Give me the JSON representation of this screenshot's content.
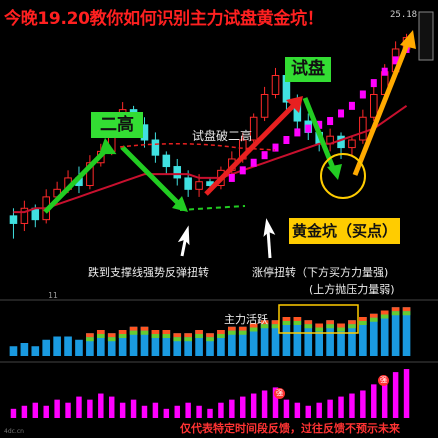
{
  "header": {
    "title": "今晚19.20教你如何识别主力试盘黄金坑！",
    "price_top": "25.18"
  },
  "annotations": {
    "two_highs": "二高",
    "test_break_second_high": "试盘破二高",
    "test_tag": "试盘",
    "golden_pit": "黄金坑（买点）",
    "pullback_text": "跌到支撑线强势反弹扭转",
    "limit_up_line1": "涨停扭转（下方买方力量强)",
    "limit_up_line2": "(上方抛压力量弱)",
    "active_label": "主力活跃",
    "lower_tick": "11",
    "corner_small": "4dc.cn",
    "badge_1": "强",
    "badge_2": "强"
  },
  "footer": {
    "disclaimer": "仅代表特定时间段反馈，过往反馈不预示未来"
  },
  "colors": {
    "title": "#ff2020",
    "price_up": "#ff2a2a",
    "price_down": "#40e0e0",
    "ma_red": "#c8102e",
    "ma_magenta": "#ff00ff",
    "arrow_green": "#22cc22",
    "arrow_red": "#e82020",
    "arrow_orange": "#ffaa00",
    "golden_box": "#ffcc00",
    "bar_blue": "#1a9ae0",
    "bar_pink": "#ff00ff"
  },
  "chart_data": [
    {
      "type": "candlestick",
      "title": "",
      "y_top_label": "25.18",
      "candles": [
        {
          "o": 20.4,
          "c": 20.2,
          "h": 20.6,
          "l": 19.8
        },
        {
          "o": 20.2,
          "c": 20.6,
          "h": 20.8,
          "l": 20.0
        },
        {
          "o": 20.6,
          "c": 20.3,
          "h": 20.7,
          "l": 20.1
        },
        {
          "o": 20.3,
          "c": 20.9,
          "h": 21.1,
          "l": 20.2
        },
        {
          "o": 20.9,
          "c": 21.1,
          "h": 21.3,
          "l": 20.7
        },
        {
          "o": 21.1,
          "c": 21.4,
          "h": 21.6,
          "l": 21.0
        },
        {
          "o": 21.4,
          "c": 21.2,
          "h": 21.7,
          "l": 21.0
        },
        {
          "o": 21.2,
          "c": 21.8,
          "h": 22.0,
          "l": 21.1
        },
        {
          "o": 21.8,
          "c": 22.1,
          "h": 22.3,
          "l": 21.7
        },
        {
          "o": 22.1,
          "c": 22.6,
          "h": 22.9,
          "l": 22.0
        },
        {
          "o": 22.6,
          "c": 23.2,
          "h": 23.4,
          "l": 22.5
        },
        {
          "o": 23.2,
          "c": 22.8,
          "h": 23.3,
          "l": 22.5
        },
        {
          "o": 22.8,
          "c": 22.4,
          "h": 23.0,
          "l": 22.2
        },
        {
          "o": 22.4,
          "c": 22.0,
          "h": 22.6,
          "l": 21.8
        },
        {
          "o": 22.0,
          "c": 21.7,
          "h": 22.1,
          "l": 21.5
        },
        {
          "o": 21.7,
          "c": 21.4,
          "h": 21.9,
          "l": 21.2
        },
        {
          "o": 21.4,
          "c": 21.1,
          "h": 21.6,
          "l": 20.9
        },
        {
          "o": 21.1,
          "c": 21.3,
          "h": 21.5,
          "l": 20.9
        },
        {
          "o": 21.3,
          "c": 21.2,
          "h": 21.4,
          "l": 21.0
        },
        {
          "o": 21.2,
          "c": 21.6,
          "h": 21.7,
          "l": 21.1
        },
        {
          "o": 21.6,
          "c": 21.9,
          "h": 22.1,
          "l": 21.5
        },
        {
          "o": 21.9,
          "c": 22.4,
          "h": 22.6,
          "l": 21.8
        },
        {
          "o": 22.4,
          "c": 23.0,
          "h": 23.1,
          "l": 22.3
        },
        {
          "o": 23.0,
          "c": 23.6,
          "h": 23.8,
          "l": 22.9
        },
        {
          "o": 23.6,
          "c": 24.1,
          "h": 24.3,
          "l": 23.5
        },
        {
          "o": 24.1,
          "c": 23.4,
          "h": 24.2,
          "l": 23.2
        },
        {
          "o": 23.4,
          "c": 22.9,
          "h": 23.6,
          "l": 22.7
        },
        {
          "o": 22.9,
          "c": 22.6,
          "h": 23.1,
          "l": 22.4
        },
        {
          "o": 22.6,
          "c": 22.3,
          "h": 22.8,
          "l": 22.1
        },
        {
          "o": 22.3,
          "c": 22.5,
          "h": 22.7,
          "l": 22.1
        },
        {
          "o": 22.5,
          "c": 22.2,
          "h": 22.6,
          "l": 21.9
        },
        {
          "o": 22.2,
          "c": 22.4,
          "h": 22.5,
          "l": 22.0
        },
        {
          "o": 22.4,
          "c": 23.0,
          "h": 23.2,
          "l": 22.3
        },
        {
          "o": 23.0,
          "c": 23.6,
          "h": 23.8,
          "l": 22.9
        },
        {
          "o": 23.6,
          "c": 24.2,
          "h": 24.4,
          "l": 23.5
        },
        {
          "o": 24.2,
          "c": 24.8,
          "h": 25.0,
          "l": 24.1
        },
        {
          "o": 24.8,
          "c": 25.1,
          "h": 25.2,
          "l": 24.7
        }
      ],
      "ma_red": [
        20.5,
        20.5,
        20.6,
        20.6,
        20.7,
        20.8,
        20.9,
        21.0,
        21.1,
        21.2,
        21.3,
        21.4,
        21.5,
        21.5,
        21.5,
        21.5,
        21.5,
        21.4,
        21.4,
        21.4,
        21.5,
        21.6,
        21.7,
        21.8,
        21.9,
        22.0,
        22.1,
        22.2,
        22.3,
        22.3,
        22.4,
        22.5,
        22.6,
        22.7,
        22.9,
        23.1,
        23.3
      ],
      "ma_magenta_dots": [
        null,
        null,
        null,
        null,
        null,
        null,
        null,
        null,
        null,
        null,
        null,
        null,
        null,
        null,
        null,
        null,
        null,
        null,
        null,
        null,
        21.4,
        21.6,
        21.8,
        22.0,
        22.2,
        22.4,
        22.6,
        22.7,
        22.8,
        22.9,
        23.1,
        23.3,
        23.6,
        23.9,
        24.2,
        24.5,
        24.8
      ],
      "ylim": [
        19.5,
        25.3
      ]
    },
    {
      "type": "bar",
      "title": "",
      "series": [
        {
          "values": [
            3,
            4,
            3,
            5,
            6,
            6,
            5,
            7,
            8,
            7,
            8,
            9,
            9,
            8,
            8,
            7,
            7,
            8,
            7,
            8,
            9,
            9,
            10,
            11,
            11,
            12,
            12,
            11,
            10,
            11,
            10,
            11,
            12,
            13,
            14,
            15,
            15
          ]
        }
      ],
      "ylim": [
        0,
        16
      ]
    },
    {
      "type": "bar",
      "title": "",
      "series": [
        {
          "values": [
            3,
            4,
            5,
            4,
            6,
            5,
            7,
            6,
            8,
            7,
            5,
            6,
            4,
            5,
            3,
            4,
            5,
            4,
            3,
            5,
            6,
            7,
            8,
            9,
            10,
            6,
            5,
            4,
            5,
            6,
            7,
            8,
            9,
            11,
            13,
            15,
            16
          ]
        }
      ],
      "ylim": [
        0,
        17
      ]
    }
  ]
}
